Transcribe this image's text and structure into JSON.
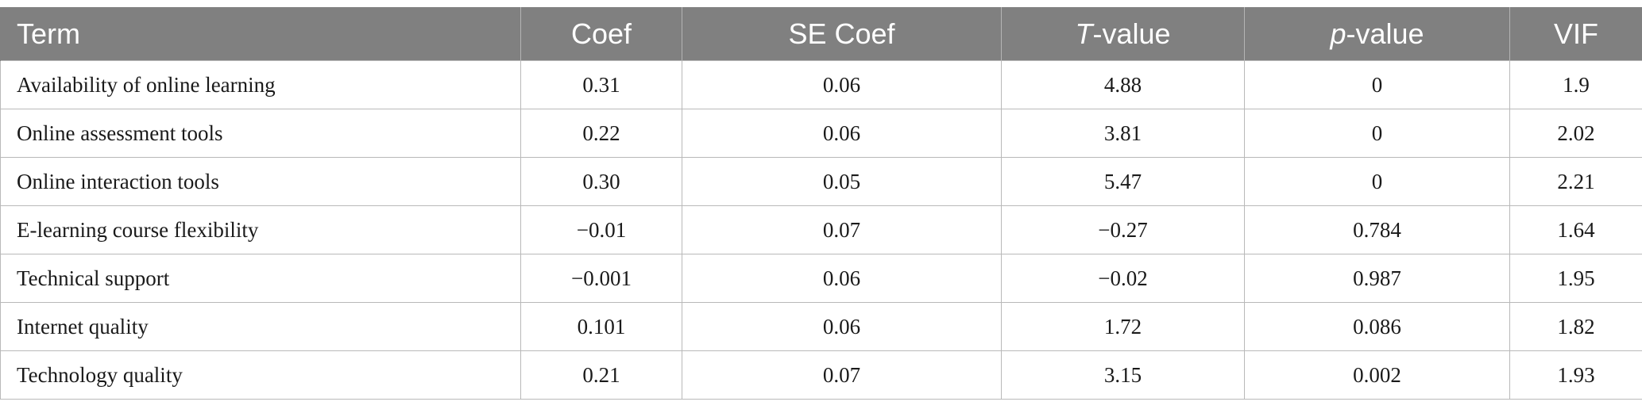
{
  "table": {
    "header": {
      "term": "Term",
      "coef": "Coef",
      "se_coef": "SE Coef",
      "t_italic": "T",
      "t_rest": "-value",
      "p_italic": "p",
      "p_rest": "-value",
      "vif": "VIF"
    },
    "rows": [
      {
        "term": "Availability of online learning",
        "coef": "0.31",
        "se": "0.06",
        "t": "4.88",
        "p": "0",
        "vif": "1.9"
      },
      {
        "term": "Online assessment tools",
        "coef": "0.22",
        "se": "0.06",
        "t": "3.81",
        "p": "0",
        "vif": "2.02"
      },
      {
        "term": "Online interaction tools",
        "coef": "0.30",
        "se": "0.05",
        "t": "5.47",
        "p": "0",
        "vif": "2.21"
      },
      {
        "term": "E-learning course flexibility",
        "coef": "−0.01",
        "se": "0.07",
        "t": "−0.27",
        "p": "0.784",
        "vif": "1.64"
      },
      {
        "term": "Technical support",
        "coef": "−0.001",
        "se": "0.06",
        "t": "−0.02",
        "p": "0.987",
        "vif": "1.95"
      },
      {
        "term": "Internet quality",
        "coef": "0.101",
        "se": "0.06",
        "t": "1.72",
        "p": "0.086",
        "vif": "1.82"
      },
      {
        "term": "Technology quality",
        "coef": "0.21",
        "se": "0.07",
        "t": "3.15",
        "p": "0.002",
        "vif": "1.93"
      }
    ]
  }
}
